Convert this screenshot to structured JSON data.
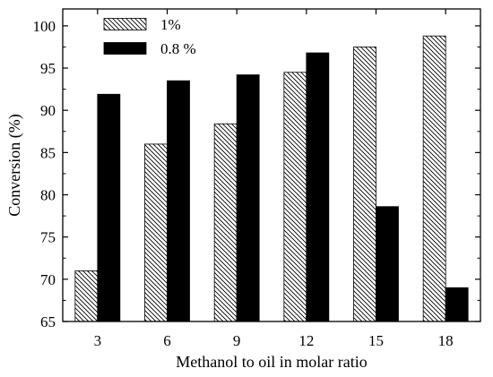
{
  "chart_data": {
    "type": "bar",
    "title": "",
    "xlabel": "Methanol to oil in molar ratio",
    "ylabel": "Conversion (%)",
    "categories": [
      "3",
      "6",
      "9",
      "12",
      "15",
      "18"
    ],
    "ylim": [
      65,
      102
    ],
    "yticks": [
      65,
      70,
      75,
      80,
      85,
      90,
      95,
      100
    ],
    "grid": false,
    "legend_position": "top-left",
    "series": [
      {
        "name": "1%",
        "values": [
          71.0,
          86.0,
          88.4,
          94.5,
          97.5,
          98.8
        ],
        "fill": "hatched",
        "color": "#000000"
      },
      {
        "name": "0.8 %",
        "values": [
          91.9,
          93.5,
          94.2,
          96.8,
          78.6,
          69.0
        ],
        "fill": "solid",
        "color": "#000000"
      }
    ]
  }
}
